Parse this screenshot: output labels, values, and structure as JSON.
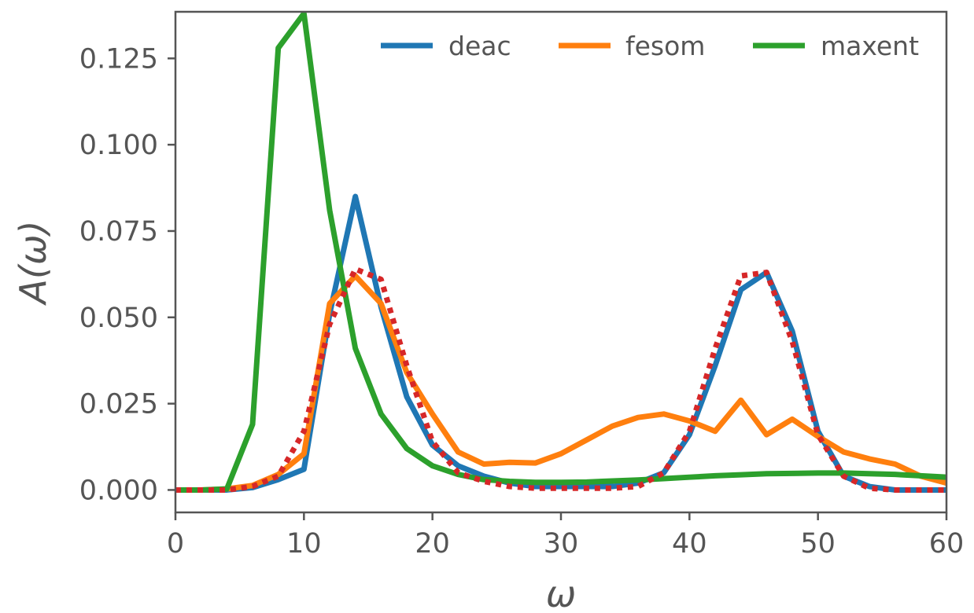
{
  "chart_data": {
    "type": "line",
    "title": "",
    "xlabel": "ω",
    "ylabel": "A(ω)",
    "xlim": [
      0,
      60
    ],
    "ylim": [
      -0.0065,
      0.1385
    ],
    "x_ticks": [
      "0",
      "10",
      "20",
      "30",
      "40",
      "50",
      "60"
    ],
    "y_ticks": [
      "0.000",
      "0.025",
      "0.050",
      "0.075",
      "0.100",
      "0.125"
    ],
    "grid": false,
    "legend_position": "top-right",
    "series": [
      {
        "name": "deac",
        "color": "#1f77b4",
        "style": "solid",
        "x": [
          0,
          2,
          4,
          6,
          8,
          10,
          12,
          14,
          16,
          18,
          20,
          22,
          24,
          26,
          28,
          30,
          32,
          34,
          36,
          38,
          40,
          42,
          44,
          46,
          48,
          50,
          52,
          54,
          56,
          58,
          60
        ],
        "y": [
          0.0,
          0.0,
          0.0,
          0.0007,
          0.003,
          0.006,
          0.051,
          0.085,
          0.053,
          0.027,
          0.013,
          0.007,
          0.004,
          0.002,
          0.001,
          0.001,
          0.001,
          0.001,
          0.002,
          0.005,
          0.016,
          0.036,
          0.058,
          0.063,
          0.046,
          0.017,
          0.004,
          0.001,
          0.0,
          0.0,
          0.0
        ]
      },
      {
        "name": "fesom",
        "color": "#ff7f0e",
        "style": "solid",
        "x": [
          0,
          2,
          4,
          6,
          8,
          10,
          12,
          14,
          16,
          18,
          20,
          22,
          24,
          26,
          28,
          30,
          32,
          34,
          36,
          38,
          40,
          42,
          44,
          46,
          48,
          50,
          52,
          54,
          56,
          58,
          60
        ],
        "y": [
          0.0,
          0.0,
          0.0003,
          0.0013,
          0.0045,
          0.0105,
          0.054,
          0.062,
          0.054,
          0.034,
          0.022,
          0.011,
          0.0075,
          0.008,
          0.0078,
          0.0105,
          0.0145,
          0.0185,
          0.021,
          0.022,
          0.02,
          0.017,
          0.026,
          0.016,
          0.0205,
          0.0155,
          0.011,
          0.009,
          0.0075,
          0.004,
          0.002
        ]
      },
      {
        "name": "maxent",
        "color": "#2ca02c",
        "style": "solid",
        "x": [
          0,
          2,
          4,
          6,
          8,
          10,
          12,
          14,
          16,
          18,
          20,
          22,
          24,
          26,
          28,
          30,
          32,
          34,
          36,
          38,
          40,
          42,
          44,
          46,
          48,
          50,
          52,
          54,
          56,
          58,
          60
        ],
        "y": [
          0.0,
          0.0,
          0.0003,
          0.019,
          0.128,
          0.138,
          0.081,
          0.041,
          0.022,
          0.012,
          0.007,
          0.0045,
          0.003,
          0.0025,
          0.0022,
          0.0022,
          0.0023,
          0.0026,
          0.0029,
          0.0033,
          0.0037,
          0.0041,
          0.0044,
          0.0047,
          0.0048,
          0.0049,
          0.0049,
          0.0047,
          0.0045,
          0.0041,
          0.0037
        ]
      },
      {
        "color": "#d62728",
        "style": "dotted",
        "x": [
          0,
          2,
          4,
          6,
          8,
          10,
          12,
          14,
          16,
          18,
          20,
          22,
          24,
          26,
          28,
          30,
          32,
          34,
          36,
          38,
          40,
          42,
          44,
          46,
          48,
          50,
          52,
          54,
          56,
          58,
          60
        ],
        "y": [
          0.0,
          0.0,
          0.0,
          0.001,
          0.004,
          0.017,
          0.048,
          0.064,
          0.061,
          0.036,
          0.014,
          0.005,
          0.0025,
          0.001,
          0.0005,
          0.0005,
          0.0005,
          0.0005,
          0.001,
          0.005,
          0.017,
          0.041,
          0.062,
          0.063,
          0.043,
          0.016,
          0.004,
          0.0005,
          0.0,
          0.0,
          0.0
        ]
      }
    ]
  }
}
